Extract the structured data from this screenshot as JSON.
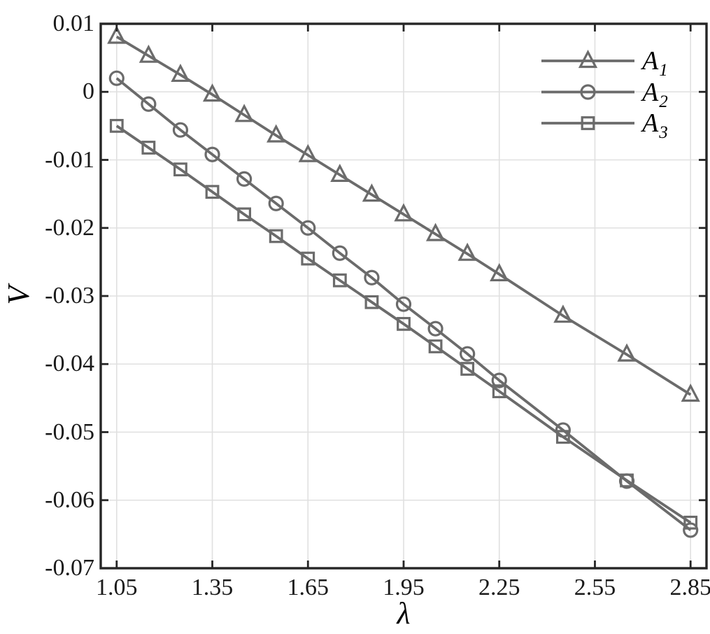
{
  "figure": {
    "background": "#ffffff"
  },
  "chart_data": {
    "type": "line",
    "title": "",
    "xlabel": "λ",
    "ylabel": "V",
    "xlim": [
      1.0,
      2.9
    ],
    "ylim": [
      -0.07,
      0.01
    ],
    "grid": true,
    "legend_position": "top-right",
    "legend_box": false,
    "xticks": [
      1.05,
      1.35,
      1.65,
      1.95,
      2.25,
      2.55,
      2.85
    ],
    "xtick_labels": [
      "1.05",
      "1.35",
      "1.65",
      "1.95",
      "2.25",
      "2.55",
      "2.85"
    ],
    "yticks": [
      0.01,
      0,
      -0.01,
      -0.02,
      -0.03,
      -0.04,
      -0.05,
      -0.06,
      -0.07
    ],
    "ytick_labels": [
      "0.01",
      "0",
      "-0.01",
      "-0.02",
      "-0.03",
      "-0.04",
      "-0.05",
      "-0.06",
      "-0.07"
    ],
    "x": [
      1.05,
      1.15,
      1.25,
      1.35,
      1.45,
      1.55,
      1.65,
      1.75,
      1.85,
      1.95,
      2.05,
      2.15,
      2.25,
      2.45,
      2.65,
      2.85
    ],
    "series": [
      {
        "name": "A",
        "sub": "1",
        "marker": "triangle",
        "values": [
          0.0081,
          0.0053,
          0.0025,
          -0.0004,
          -0.0034,
          -0.0064,
          -0.0093,
          -0.0122,
          -0.0151,
          -0.018,
          -0.0209,
          -0.0238,
          -0.0268,
          -0.0329,
          -0.0386,
          -0.0445
        ]
      },
      {
        "name": "A",
        "sub": "2",
        "marker": "circle",
        "values": [
          0.002,
          -0.0018,
          -0.0056,
          -0.0092,
          -0.0128,
          -0.0164,
          -0.02,
          -0.0237,
          -0.0273,
          -0.0312,
          -0.0348,
          -0.0385,
          -0.0424,
          -0.0497,
          -0.0572,
          -0.0644
        ]
      },
      {
        "name": "A",
        "sub": "3",
        "marker": "square",
        "values": [
          -0.005,
          -0.0082,
          -0.0114,
          -0.0147,
          -0.018,
          -0.0212,
          -0.0245,
          -0.0277,
          -0.0309,
          -0.0341,
          -0.0374,
          -0.0407,
          -0.044,
          -0.0507,
          -0.0571,
          -0.0633
        ]
      }
    ],
    "colors": {
      "series_line": "#6b6b6b",
      "axis": "#262626",
      "grid": "#e0e0e0",
      "tick_text": "#1a1a1a",
      "label_text": "#000000",
      "background": "#ffffff"
    }
  }
}
